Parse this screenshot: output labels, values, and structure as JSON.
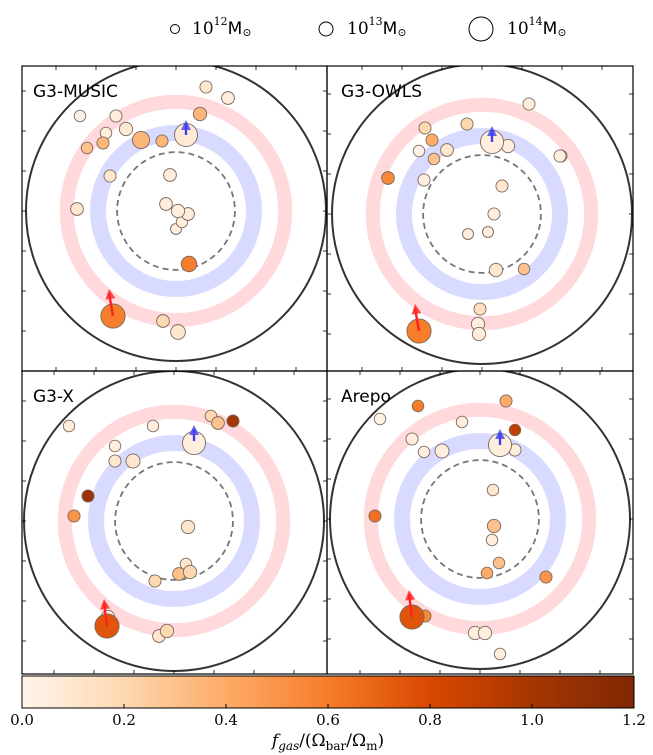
{
  "legend": {
    "items": [
      {
        "label": "10",
        "sup": "12",
        "unit": "M",
        "sub": "⊙",
        "mass_log": 12
      },
      {
        "label": "10",
        "sup": "13",
        "unit": "M",
        "sub": "⊙",
        "mass_log": 13
      },
      {
        "label": "10",
        "sup": "14",
        "unit": "M",
        "sub": "⊙",
        "mass_log": 14
      }
    ]
  },
  "colorbar": {
    "label_main": "f",
    "label_sub": "gas",
    "label_rest": "/(Ω",
    "label_sub2": "bar",
    "label_rest2": "/Ω",
    "label_sub3": "m",
    "label_end": ")",
    "range": [
      0.0,
      1.2
    ],
    "ticks": [
      "0.0",
      "0.2",
      "0.4",
      "0.6",
      "0.8",
      "1.0",
      "1.2"
    ],
    "colors": [
      "#fff5eb",
      "#fdd8b1",
      "#fdab67",
      "#f67d2a",
      "#d94801",
      "#a63603",
      "#7f2704"
    ]
  },
  "colors": {
    "ring_red": "#ffd9dc",
    "ring_blue": "#d8dbff",
    "arrow_red": "#ff2020",
    "arrow_blue": "#4040ee",
    "outer_circle": "#333333",
    "dashed_circle": "#777777"
  },
  "chart_data": {
    "type": "scatter",
    "description_units": "projected position in units of R200 of the main cluster; marker area scales with halo mass; color encodes f_gas/(Omega_bar/Omega_m)",
    "xlim": [
      -1.6,
      1.6
    ],
    "ylim": [
      -1.6,
      1.6
    ],
    "radii": {
      "outer": 1.5,
      "dashed": 0.62,
      "blue_ring": 0.78,
      "red_ring": 1.2
    },
    "panels": [
      {
        "title": "G3-MUSIC",
        "arrows": [
          {
            "color": "red",
            "x": -0.63,
            "y": -1.05,
            "dx": -0.04,
            "dy": 0.27
          },
          {
            "color": "blue",
            "x": 0.1,
            "y": 0.76,
            "dx": 0.0,
            "dy": 0.15
          }
        ],
        "halos": [
          {
            "x": 0.1,
            "y": 0.76,
            "m": 13.9,
            "f": 0.08
          },
          {
            "x": -0.63,
            "y": -1.05,
            "m": 14.0,
            "f": 0.6
          },
          {
            "x": 0.13,
            "y": -0.53,
            "m": 13.1,
            "f": 0.6
          },
          {
            "x": -0.35,
            "y": 0.71,
            "m": 13.3,
            "f": 0.35
          },
          {
            "x": -0.5,
            "y": 0.82,
            "m": 12.8,
            "f": 0.08
          },
          {
            "x": -0.7,
            "y": 0.78,
            "m": 12.5,
            "f": 0.05
          },
          {
            "x": -0.73,
            "y": 0.68,
            "m": 12.6,
            "f": 0.35
          },
          {
            "x": -0.89,
            "y": 0.63,
            "m": 12.5,
            "f": 0.3
          },
          {
            "x": -0.66,
            "y": 0.35,
            "m": 12.6,
            "f": 0.1
          },
          {
            "x": -0.99,
            "y": 0.02,
            "m": 12.7,
            "f": 0.1
          },
          {
            "x": -0.96,
            "y": 0.95,
            "m": 12.5,
            "f": 0.02
          },
          {
            "x": -0.6,
            "y": 0.95,
            "m": 12.6,
            "f": 0.05
          },
          {
            "x": -0.14,
            "y": 0.7,
            "m": 12.6,
            "f": 0.35
          },
          {
            "x": 0.24,
            "y": 0.97,
            "m": 12.8,
            "f": 0.35
          },
          {
            "x": 0.52,
            "y": 1.13,
            "m": 12.7,
            "f": 0.05
          },
          {
            "x": 0.3,
            "y": 1.24,
            "m": 12.6,
            "f": 0.1
          },
          {
            "x": -0.06,
            "y": 0.36,
            "m": 12.7,
            "f": 0.05
          },
          {
            "x": -0.1,
            "y": 0.07,
            "m": 12.7,
            "f": 0.05
          },
          {
            "x": 0.02,
            "y": 0.0,
            "m": 12.8,
            "f": 0.05
          },
          {
            "x": 0.12,
            "y": -0.03,
            "m": 12.7,
            "f": 0.05
          },
          {
            "x": 0.06,
            "y": -0.11,
            "m": 12.5,
            "f": 0.05
          },
          {
            "x": 0.0,
            "y": -0.18,
            "m": 12.4,
            "f": 0.05
          },
          {
            "x": 0.02,
            "y": -1.21,
            "m": 13.0,
            "f": 0.1
          },
          {
            "x": -0.13,
            "y": -1.1,
            "m": 12.7,
            "f": 0.2
          }
        ]
      },
      {
        "title": "G3-OWLS",
        "arrows": [
          {
            "color": "red",
            "x": -0.63,
            "y": -1.17,
            "dx": -0.04,
            "dy": 0.27
          },
          {
            "color": "blue",
            "x": 0.1,
            "y": 0.72,
            "dx": 0.0,
            "dy": 0.16
          }
        ],
        "halos": [
          {
            "x": 0.1,
            "y": 0.72,
            "m": 13.9,
            "f": 0.05
          },
          {
            "x": -0.63,
            "y": -1.17,
            "m": 14.0,
            "f": 0.6
          },
          {
            "x": -0.94,
            "y": 0.36,
            "m": 12.7,
            "f": 0.55
          },
          {
            "x": -0.48,
            "y": 0.55,
            "m": 12.5,
            "f": 0.3
          },
          {
            "x": -0.57,
            "y": 0.86,
            "m": 12.6,
            "f": 0.2
          },
          {
            "x": -0.5,
            "y": 0.74,
            "m": 12.6,
            "f": 0.4
          },
          {
            "x": -0.58,
            "y": 0.34,
            "m": 12.6,
            "f": 0.05
          },
          {
            "x": -0.63,
            "y": 0.63,
            "m": 12.5,
            "f": 0.02
          },
          {
            "x": -0.35,
            "y": 0.64,
            "m": 12.7,
            "f": 0.1
          },
          {
            "x": -0.15,
            "y": 0.9,
            "m": 12.6,
            "f": 0.2
          },
          {
            "x": 0.26,
            "y": 0.68,
            "m": 12.8,
            "f": 0.05
          },
          {
            "x": 0.47,
            "y": 1.1,
            "m": 12.6,
            "f": 0.05
          },
          {
            "x": 0.79,
            "y": 0.58,
            "m": 12.6,
            "f": 0.05
          },
          {
            "x": 0.2,
            "y": 0.28,
            "m": 12.6,
            "f": 0.1
          },
          {
            "x": 0.12,
            "y": 0.0,
            "m": 12.6,
            "f": 0.05
          },
          {
            "x": 0.06,
            "y": -0.18,
            "m": 12.4,
            "f": 0.05
          },
          {
            "x": -0.14,
            "y": -0.2,
            "m": 12.4,
            "f": 0.05
          },
          {
            "x": 0.14,
            "y": -0.56,
            "m": 12.8,
            "f": 0.1
          },
          {
            "x": 0.42,
            "y": -0.55,
            "m": 12.5,
            "f": 0.3
          },
          {
            "x": -0.02,
            "y": -0.95,
            "m": 12.6,
            "f": 0.15
          },
          {
            "x": -0.04,
            "y": -1.1,
            "m": 12.8,
            "f": 0.05
          },
          {
            "x": -0.03,
            "y": -1.2,
            "m": 12.8,
            "f": 0.05
          },
          {
            "x": 0.78,
            "y": 0.58,
            "m": 12.6,
            "f": 0.05
          }
        ]
      },
      {
        "title": "G3-X",
        "arrows": [
          {
            "color": "red",
            "x": -0.67,
            "y": -1.05,
            "dx": -0.03,
            "dy": 0.27
          },
          {
            "color": "blue",
            "x": 0.2,
            "y": 0.8,
            "dx": 0.0,
            "dy": 0.16
          }
        ],
        "halos": [
          {
            "x": 0.2,
            "y": 0.78,
            "m": 13.9,
            "f": 0.05
          },
          {
            "x": -0.67,
            "y": -1.05,
            "m": 14.0,
            "f": 0.75
          },
          {
            "x": -0.66,
            "y": -0.96,
            "m": 12.8,
            "f": 0.05
          },
          {
            "x": -0.86,
            "y": 0.25,
            "m": 12.6,
            "f": 1.05
          },
          {
            "x": -1.0,
            "y": 0.05,
            "m": 12.6,
            "f": 0.5
          },
          {
            "x": -1.05,
            "y": 0.95,
            "m": 12.5,
            "f": 0.05
          },
          {
            "x": -0.59,
            "y": 0.75,
            "m": 12.5,
            "f": 0.05
          },
          {
            "x": -0.59,
            "y": 0.6,
            "m": 12.6,
            "f": 0.1
          },
          {
            "x": -0.41,
            "y": 0.6,
            "m": 12.9,
            "f": 0.1
          },
          {
            "x": -0.21,
            "y": 0.95,
            "m": 12.5,
            "f": 0.05
          },
          {
            "x": 0.37,
            "y": 1.05,
            "m": 12.5,
            "f": 0.2
          },
          {
            "x": 0.44,
            "y": 0.98,
            "m": 12.7,
            "f": 0.3
          },
          {
            "x": 0.59,
            "y": 1.0,
            "m": 12.6,
            "f": 1.0
          },
          {
            "x": 0.14,
            "y": -0.06,
            "m": 12.8,
            "f": 0.1
          },
          {
            "x": 0.12,
            "y": -0.43,
            "m": 12.5,
            "f": 0.1
          },
          {
            "x": 0.05,
            "y": -0.53,
            "m": 12.7,
            "f": 0.3
          },
          {
            "x": 0.16,
            "y": -0.51,
            "m": 12.8,
            "f": 0.2
          },
          {
            "x": -0.19,
            "y": -0.6,
            "m": 12.6,
            "f": 0.2
          },
          {
            "x": -0.07,
            "y": -1.1,
            "m": 12.8,
            "f": 0.2
          },
          {
            "x": -0.15,
            "y": -1.15,
            "m": 12.7,
            "f": 0.1
          }
        ]
      },
      {
        "title": "Arepo",
        "arrows": [
          {
            "color": "red",
            "x": -0.68,
            "y": -0.98,
            "dx": -0.03,
            "dy": 0.27
          },
          {
            "color": "blue",
            "x": 0.2,
            "y": 0.74,
            "dx": 0.0,
            "dy": 0.16
          }
        ],
        "halos": [
          {
            "x": 0.2,
            "y": 0.74,
            "m": 13.9,
            "f": 0.05
          },
          {
            "x": -0.68,
            "y": -0.98,
            "m": 14.0,
            "f": 0.75
          },
          {
            "x": -0.55,
            "y": -0.97,
            "m": 12.6,
            "f": 0.55
          },
          {
            "x": -1.0,
            "y": 1.0,
            "m": 12.5,
            "f": 0.02
          },
          {
            "x": -1.05,
            "y": 0.03,
            "m": 12.6,
            "f": 0.65
          },
          {
            "x": -0.62,
            "y": 1.13,
            "m": 12.5,
            "f": 0.6
          },
          {
            "x": -0.68,
            "y": 0.8,
            "m": 12.6,
            "f": 0.05
          },
          {
            "x": -0.56,
            "y": 0.67,
            "m": 12.5,
            "f": 0.05
          },
          {
            "x": -0.38,
            "y": 0.68,
            "m": 12.9,
            "f": 0.05
          },
          {
            "x": -0.18,
            "y": 0.97,
            "m": 12.5,
            "f": 0.05
          },
          {
            "x": 0.26,
            "y": 1.18,
            "m": 12.6,
            "f": 0.4
          },
          {
            "x": 0.35,
            "y": 0.89,
            "m": 12.5,
            "f": 0.9
          },
          {
            "x": 0.35,
            "y": 0.69,
            "m": 12.6,
            "f": 0.05
          },
          {
            "x": 0.13,
            "y": 0.29,
            "m": 12.5,
            "f": 0.1
          },
          {
            "x": 0.14,
            "y": -0.07,
            "m": 12.8,
            "f": 0.3
          },
          {
            "x": 0.12,
            "y": -0.21,
            "m": 12.5,
            "f": 0.05
          },
          {
            "x": 0.19,
            "y": -0.44,
            "m": 12.5,
            "f": 0.3
          },
          {
            "x": 0.07,
            "y": -0.54,
            "m": 12.5,
            "f": 0.4
          },
          {
            "x": 0.66,
            "y": -0.58,
            "m": 12.6,
            "f": 0.5
          },
          {
            "x": -0.05,
            "y": -1.14,
            "m": 12.8,
            "f": 0.05
          },
          {
            "x": 0.05,
            "y": -1.14,
            "m": 12.8,
            "f": 0.05
          },
          {
            "x": 0.2,
            "y": -1.35,
            "m": 12.5,
            "f": 0.05
          }
        ]
      }
    ]
  }
}
